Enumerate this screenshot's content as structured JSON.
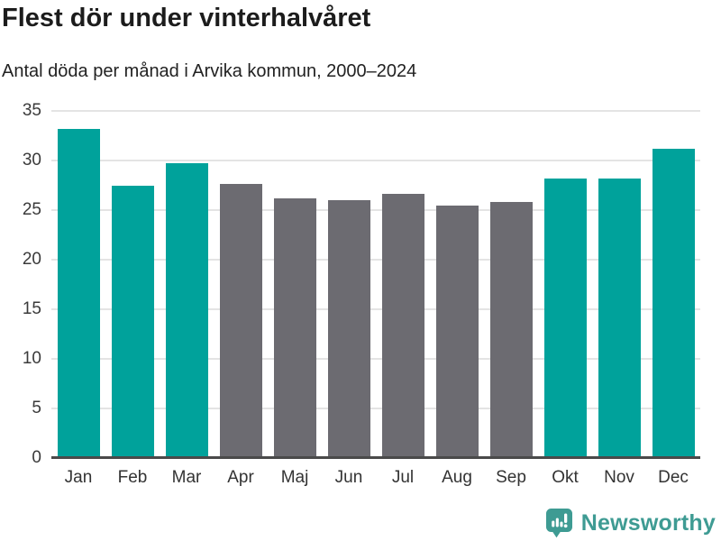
{
  "header": {
    "title": "Flest dör under vinterhalvåret",
    "subtitle": "Antal döda per månad i Arvika kommun, 2000–2024"
  },
  "chart_data": {
    "type": "bar",
    "title": "Flest dör under vinterhalvåret",
    "subtitle": "Antal döda per månad i Arvika kommun, 2000–2024",
    "categories": [
      "Jan",
      "Feb",
      "Mar",
      "Apr",
      "Maj",
      "Jun",
      "Jul",
      "Aug",
      "Sep",
      "Okt",
      "Nov",
      "Dec"
    ],
    "values": [
      33.2,
      27.5,
      29.7,
      27.6,
      26.2,
      26.0,
      26.6,
      25.5,
      25.8,
      28.2,
      28.2,
      31.2
    ],
    "bar_color_keys": [
      "highlight",
      "highlight",
      "highlight",
      "muted",
      "muted",
      "muted",
      "muted",
      "muted",
      "muted",
      "highlight",
      "highlight",
      "highlight"
    ],
    "colors": {
      "highlight": "#00A29B",
      "muted": "#6C6B71"
    },
    "xlabel": "",
    "ylabel": "",
    "ylim": [
      0,
      35
    ],
    "yticks": [
      0,
      5,
      10,
      15,
      20,
      25,
      30,
      35
    ],
    "grid": true,
    "legend": "none"
  },
  "footer": {
    "brand": "Newsworthy",
    "brand_color": "#3E9B93",
    "icon": "newsworthy-speech-bubble-bar-chart"
  }
}
